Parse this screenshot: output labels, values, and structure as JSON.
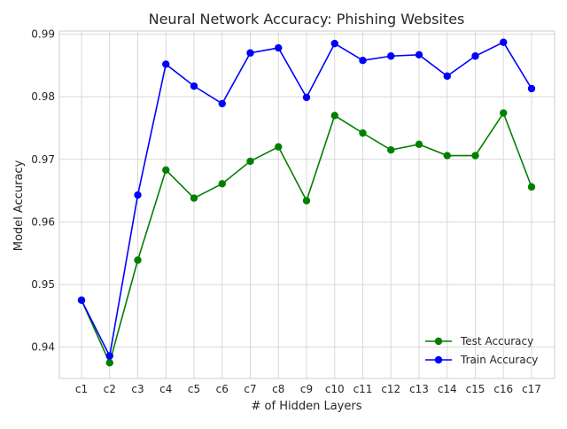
{
  "chart_data": {
    "type": "line",
    "title": "Neural Network Accuracy: Phishing Websites",
    "xlabel": "# of Hidden Layers",
    "ylabel": "Model Accuracy",
    "categories": [
      "c1",
      "c2",
      "c3",
      "c4",
      "c5",
      "c6",
      "c7",
      "c8",
      "c9",
      "c10",
      "c11",
      "c12",
      "c13",
      "c14",
      "c15",
      "c16",
      "c17"
    ],
    "ylim": [
      0.935,
      0.9905
    ],
    "yticks": [
      0.94,
      0.95,
      0.96,
      0.97,
      0.98,
      0.99
    ],
    "ytick_labels": [
      "0.94",
      "0.95",
      "0.96",
      "0.97",
      "0.98",
      "0.99"
    ],
    "grid": true,
    "legend_position": "lower-right",
    "series": [
      {
        "name": "Test Accuracy",
        "color": "#008000",
        "marker": "circle",
        "values": [
          0.9475,
          0.9375,
          0.9539,
          0.9683,
          0.9638,
          0.9661,
          0.9697,
          0.972,
          0.9634,
          0.977,
          0.9742,
          0.9715,
          0.9724,
          0.9706,
          0.9706,
          0.9774,
          0.9656
        ]
      },
      {
        "name": "Train Accuracy",
        "color": "#0000ff",
        "marker": "circle",
        "values": [
          0.9475,
          0.9386,
          0.9643,
          0.9852,
          0.9817,
          0.9789,
          0.987,
          0.9878,
          0.9799,
          0.9885,
          0.9858,
          0.9865,
          0.9867,
          0.9833,
          0.9865,
          0.9887,
          0.9813
        ]
      }
    ]
  }
}
